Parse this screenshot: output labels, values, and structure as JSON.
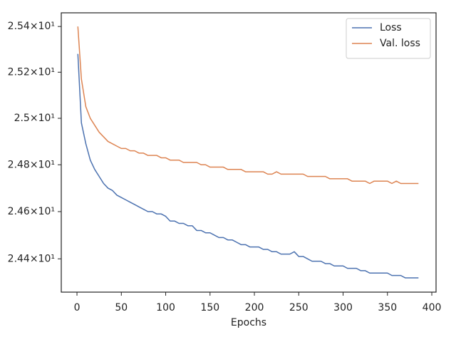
{
  "chart_data": {
    "type": "line",
    "x_label": "Epochs",
    "x": [
      1,
      5,
      10,
      15,
      20,
      25,
      30,
      35,
      40,
      45,
      50,
      55,
      60,
      65,
      70,
      75,
      80,
      85,
      90,
      95,
      100,
      105,
      110,
      115,
      120,
      125,
      130,
      135,
      140,
      145,
      150,
      155,
      160,
      165,
      170,
      175,
      180,
      185,
      190,
      195,
      200,
      205,
      210,
      215,
      220,
      225,
      230,
      235,
      240,
      245,
      250,
      255,
      260,
      265,
      270,
      275,
      280,
      285,
      290,
      295,
      300,
      305,
      310,
      315,
      320,
      325,
      330,
      335,
      340,
      345,
      350,
      355,
      360,
      365,
      370,
      375,
      380,
      385
    ],
    "series": [
      {
        "name": "Loss",
        "color": "#4c72b0",
        "values": [
          25.28,
          24.98,
          24.89,
          24.82,
          24.78,
          24.75,
          24.72,
          24.7,
          24.69,
          24.67,
          24.66,
          24.65,
          24.64,
          24.63,
          24.62,
          24.61,
          24.6,
          24.6,
          24.59,
          24.59,
          24.58,
          24.56,
          24.56,
          24.55,
          24.55,
          24.54,
          24.54,
          24.52,
          24.52,
          24.51,
          24.51,
          24.5,
          24.49,
          24.49,
          24.48,
          24.48,
          24.47,
          24.46,
          24.46,
          24.45,
          24.45,
          24.45,
          24.44,
          24.44,
          24.43,
          24.43,
          24.42,
          24.42,
          24.42,
          24.43,
          24.41,
          24.41,
          24.4,
          24.39,
          24.39,
          24.39,
          24.38,
          24.38,
          24.37,
          24.37,
          24.37,
          24.36,
          24.36,
          24.36,
          24.35,
          24.35,
          24.34,
          24.34,
          24.34,
          24.34,
          24.34,
          24.33,
          24.33,
          24.33,
          24.32,
          24.32,
          24.32,
          24.32
        ]
      },
      {
        "name": "Val. loss",
        "color": "#dd8452",
        "values": [
          25.4,
          25.17,
          25.05,
          25.0,
          24.97,
          24.94,
          24.92,
          24.9,
          24.89,
          24.88,
          24.87,
          24.87,
          24.86,
          24.86,
          24.85,
          24.85,
          24.84,
          24.84,
          24.84,
          24.83,
          24.83,
          24.82,
          24.82,
          24.82,
          24.81,
          24.81,
          24.81,
          24.81,
          24.8,
          24.8,
          24.79,
          24.79,
          24.79,
          24.79,
          24.78,
          24.78,
          24.78,
          24.78,
          24.77,
          24.77,
          24.77,
          24.77,
          24.77,
          24.76,
          24.76,
          24.77,
          24.76,
          24.76,
          24.76,
          24.76,
          24.76,
          24.76,
          24.75,
          24.75,
          24.75,
          24.75,
          24.75,
          24.74,
          24.74,
          24.74,
          24.74,
          24.74,
          24.73,
          24.73,
          24.73,
          24.73,
          24.72,
          24.73,
          24.73,
          24.73,
          24.73,
          24.72,
          24.73,
          24.72,
          24.72,
          24.72,
          24.72,
          24.72
        ]
      }
    ],
    "xlim": [
      -17.7,
      404.8
    ],
    "xticks": [
      0,
      50,
      100,
      150,
      200,
      250,
      300,
      350,
      400
    ],
    "ylim": [
      24.26,
      25.46
    ],
    "yscale": "log",
    "yticks": [
      {
        "value": 24.4,
        "label": "2.44×10¹"
      },
      {
        "value": 24.6,
        "label": "2.46×10¹"
      },
      {
        "value": 24.8,
        "label": "2.48×10¹"
      },
      {
        "value": 25,
        "label": "2.5×10¹"
      },
      {
        "value": 25.2,
        "label": "2.52×10¹"
      },
      {
        "value": 25.4,
        "label": "2.54×10¹"
      }
    ],
    "legend": "upper right"
  }
}
